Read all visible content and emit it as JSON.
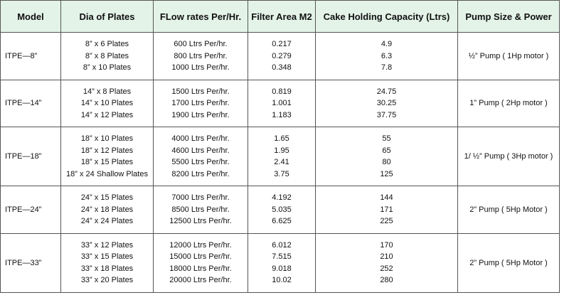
{
  "table": {
    "header": [
      "Model",
      "Dia of Plates",
      "FLow rates Per/Hr.",
      "Filter Area M2",
      "Cake Holding Capacity (Ltrs)",
      "Pump Size & Power"
    ],
    "groups": [
      {
        "model": "ITPE—8”",
        "plates": [
          "8” x 6 Plates",
          "8” x 8 Plates",
          "8” x 10 Plates"
        ],
        "flow": [
          "600 Ltrs Per/hr.",
          "800 Ltrs Per/hr.",
          "1000 Ltrs Per/hr."
        ],
        "area": [
          "0.217",
          "0.279",
          "0.348"
        ],
        "capacity": [
          "4.9",
          "6.3",
          "7.8"
        ],
        "pump": "½” Pump ( 1Hp motor )"
      },
      {
        "model": "ITPE—14”",
        "plates": [
          "14” x 8 Plates",
          "14” x 10 Plates",
          "14” x 12 Plates"
        ],
        "flow": [
          "1500 Ltrs Per/hr.",
          "1700 Ltrs Per/hr.",
          "1900 Ltrs Per/hr."
        ],
        "area": [
          "0.819",
          "1.001",
          "1.183"
        ],
        "capacity": [
          "24.75",
          "30.25",
          "37.75"
        ],
        "pump": "1” Pump ( 2Hp motor )"
      },
      {
        "model": "ITPE—18”",
        "plates": [
          "18” x 10 Plates",
          "18” x 12 Plates",
          "18” x 15 Plates",
          "18” x 24 Shallow Plates"
        ],
        "flow": [
          "4000 Ltrs Per/hr.",
          "4600 Ltrs Per/hr.",
          "5500 Ltrs Per/hr.",
          "8200 Ltrs Per/hr."
        ],
        "area": [
          "1.65",
          "1.95",
          "2.41",
          "3.75"
        ],
        "capacity": [
          "55",
          "65",
          "80",
          "125"
        ],
        "pump": "1/ ½” Pump ( 3Hp motor )"
      },
      {
        "model": "ITPE—24”",
        "plates": [
          "24” x 15 Plates",
          "24” x 18 Plates",
          "24” x 24 Plates"
        ],
        "flow": [
          "7000 Ltrs Per/hr.",
          "8500 Ltrs Per/hr.",
          "12500 Ltrs Per/hr."
        ],
        "area": [
          "4.192",
          "5.035",
          "6.625"
        ],
        "capacity": [
          "144",
          "171",
          "225"
        ],
        "pump": "2” Pump ( 5Hp Motor )"
      },
      {
        "model": "ITPE—33”",
        "plates": [
          "33” x 12 Plates",
          "33” x 15 Plates",
          "33” x 18 Plates",
          "33” x 20 Plates"
        ],
        "flow": [
          "12000 Ltrs Per/hr.",
          "15000 Ltrs Per/hr.",
          "18000 Ltrs Per/hr.",
          "20000 Ltrs Per/hr."
        ],
        "area": [
          "6.012",
          "7.515",
          "9.018",
          "10.02"
        ],
        "capacity": [
          "170",
          "210",
          "252",
          "280"
        ],
        "pump": "2” Pump ( 5Hp Motor )"
      }
    ]
  }
}
